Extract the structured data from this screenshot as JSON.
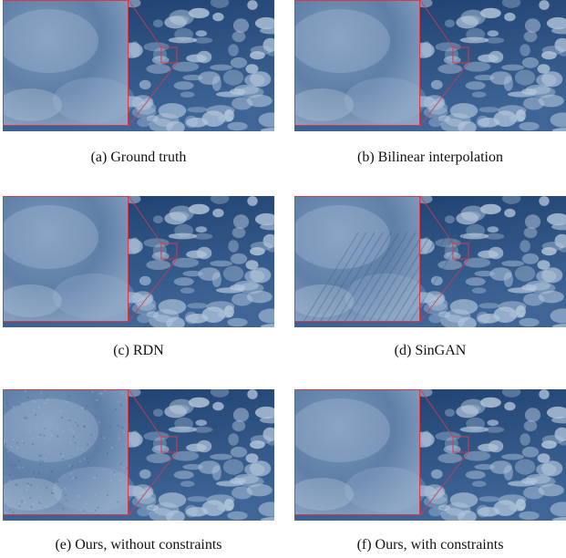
{
  "figure": {
    "panels": [
      {
        "caption": "(a) Ground truth",
        "variant": "smooth"
      },
      {
        "caption": "(b) Bilinear interpolation",
        "variant": "smooth"
      },
      {
        "caption": "(c) RDN",
        "variant": "smooth"
      },
      {
        "caption": "(d) SinGAN",
        "variant": "streaks"
      },
      {
        "caption": "(e) Ours, without constraints",
        "variant": "grainy"
      },
      {
        "caption": "(f) Ours, with constraints",
        "variant": "smooth"
      }
    ],
    "colors": {
      "sky_dark": "#1d3f6e",
      "sky_mid": "#3e6596",
      "cloud": "#c9d9ea",
      "inset_bg": "#5f7fa7",
      "inset_border": "#d43a4b"
    }
  }
}
